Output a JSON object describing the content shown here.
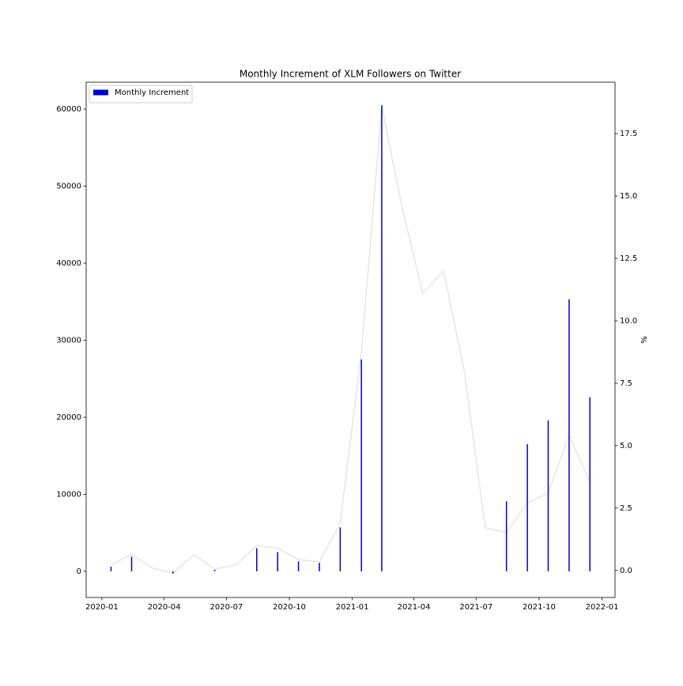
{
  "chart_data": {
    "type": "bar",
    "title": "Monthly Increment of XLM Followers on Twitter",
    "y2label": "%",
    "x": [
      "2020-01",
      "2020-02",
      "2020-03",
      "2020-04",
      "2020-05",
      "2020-06",
      "2020-07",
      "2020-08",
      "2020-09",
      "2020-10",
      "2020-11",
      "2020-12",
      "2021-01",
      "2021-02",
      "2021-03",
      "2021-04",
      "2021-05",
      "2021-06",
      "2021-07",
      "2021-08",
      "2021-09",
      "2021-10",
      "2021-11",
      "2021-12"
    ],
    "series": [
      {
        "name": "Monthly Increment",
        "type": "bar",
        "color": "#0000cd",
        "values": [
          600,
          1900,
          null,
          -300,
          null,
          200,
          null,
          3000,
          2500,
          1300,
          1100,
          5700,
          27500,
          60500,
          null,
          null,
          null,
          null,
          null,
          9100,
          16500,
          19600,
          35300,
          22600
        ]
      },
      {
        "type": "line",
        "axis": "y2",
        "color": "#e4e4ee",
        "values": [
          0.22,
          0.66,
          0.1,
          -0.1,
          0.63,
          0.06,
          0.22,
          1.0,
          0.89,
          0.44,
          0.35,
          1.9,
          8.77,
          18.6,
          14.6,
          11.1,
          12.0,
          7.97,
          1.71,
          1.52,
          2.72,
          3.1,
          5.44,
          3.54
        ]
      }
    ],
    "xlim": [
      "2019-12-09",
      "2022-01-20"
    ],
    "xticks": [
      "2020-01",
      "2020-04",
      "2020-07",
      "2020-10",
      "2021-01",
      "2021-04",
      "2021-07",
      "2021-10",
      "2022-01"
    ],
    "ylim": [
      -3400,
      63500
    ],
    "yticks": [
      0,
      10000,
      20000,
      30000,
      40000,
      50000,
      60000
    ],
    "y2lim": [
      -1.08,
      19.56
    ],
    "y2ticks": [
      {
        "value": 0,
        "label": "0.0"
      },
      2.5,
      {
        "value": 5,
        "label": "5.0"
      },
      7.5,
      {
        "value": 10,
        "label": "10.0"
      },
      12.5,
      {
        "value": 15,
        "label": "15.0"
      },
      17.5
    ],
    "legend": "upper left",
    "grid": false
  }
}
